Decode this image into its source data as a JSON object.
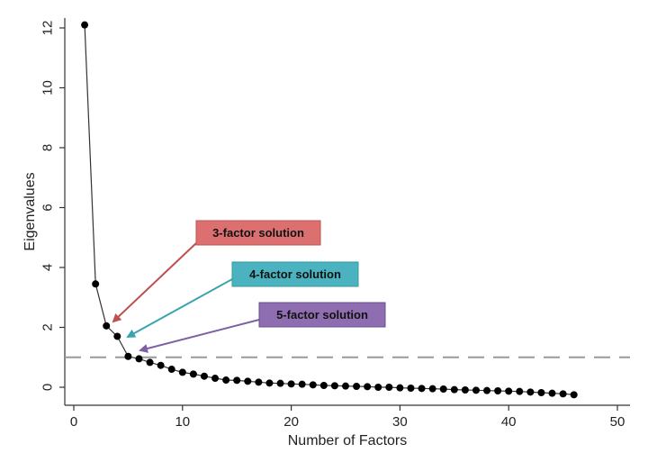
{
  "chart_data": {
    "type": "line",
    "xlabel": "Number of Factors",
    "ylabel": "Eigenvalues",
    "xlim": [
      0,
      50
    ],
    "ylim": [
      -0.7,
      12.4
    ],
    "xticks": [
      0,
      10,
      20,
      30,
      40,
      50
    ],
    "yticks": [
      0,
      2,
      4,
      6,
      8,
      10,
      12
    ],
    "reference_line": {
      "y": 1,
      "style": "dashed"
    },
    "grid": false,
    "series": [
      {
        "x": [
          1,
          2,
          3,
          4,
          5,
          6,
          7,
          8,
          9,
          10,
          11,
          12,
          13,
          14,
          15,
          16,
          17,
          18,
          19,
          20,
          21,
          22,
          23,
          24,
          25,
          26,
          27,
          28,
          29,
          30,
          31,
          32,
          33,
          34,
          35,
          36,
          37,
          38,
          39,
          40,
          41,
          42,
          43,
          44,
          45,
          46
        ],
        "values": [
          12.1,
          3.45,
          2.05,
          1.7,
          1.03,
          0.95,
          0.83,
          0.73,
          0.6,
          0.5,
          0.44,
          0.37,
          0.3,
          0.24,
          0.23,
          0.2,
          0.17,
          0.14,
          0.13,
          0.11,
          0.1,
          0.08,
          0.06,
          0.05,
          0.04,
          0.03,
          0.02,
          0.0,
          0.0,
          -0.02,
          -0.03,
          -0.04,
          -0.05,
          -0.06,
          -0.08,
          -0.09,
          -0.1,
          -0.11,
          -0.12,
          -0.13,
          -0.14,
          -0.16,
          -0.18,
          -0.2,
          -0.22,
          -0.25
        ]
      }
    ],
    "annotations": [
      {
        "text": "3-factor solution",
        "color": "#dc7070",
        "arrow_color": "#c0504d",
        "points_to_factor": 3
      },
      {
        "text": "4-factor solution",
        "color": "#4bb3bf",
        "arrow_color": "#3aa3b0",
        "points_to_factor": 4
      },
      {
        "text": "5-factor solution",
        "color": "#8e6db0",
        "arrow_color": "#7e60a4",
        "points_to_factor": 5
      }
    ]
  }
}
